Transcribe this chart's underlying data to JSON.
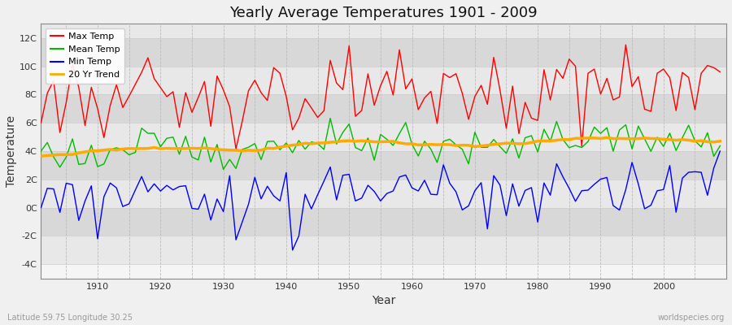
{
  "title": "Yearly Average Temperatures 1901 - 2009",
  "xlabel": "Year",
  "ylabel": "Temperature",
  "subtitle_left": "Latitude 59.75 Longitude 30.25",
  "subtitle_right": "worldspecies.org",
  "legend_labels": [
    "Max Temp",
    "Mean Temp",
    "Min Temp",
    "20 Yr Trend"
  ],
  "colors": {
    "max": "#ff0000",
    "mean": "#00bb00",
    "min": "#0000ff",
    "trend": "#ffaa00"
  },
  "yticks": [
    -4,
    -2,
    0,
    2,
    4,
    6,
    8,
    10,
    12
  ],
  "ytick_labels": [
    "-4C",
    "-2C",
    "0C",
    "2C",
    "4C",
    "6C",
    "8C",
    "10C",
    "12C"
  ],
  "ylim": [
    -5,
    13
  ],
  "xlim": [
    1901,
    2010
  ],
  "bg_outer": "#f0f0f0",
  "bg_plot": "#f5f5f5",
  "bg_band_light": "#ebebeb",
  "bg_band_dark": "#e0e0e0"
}
